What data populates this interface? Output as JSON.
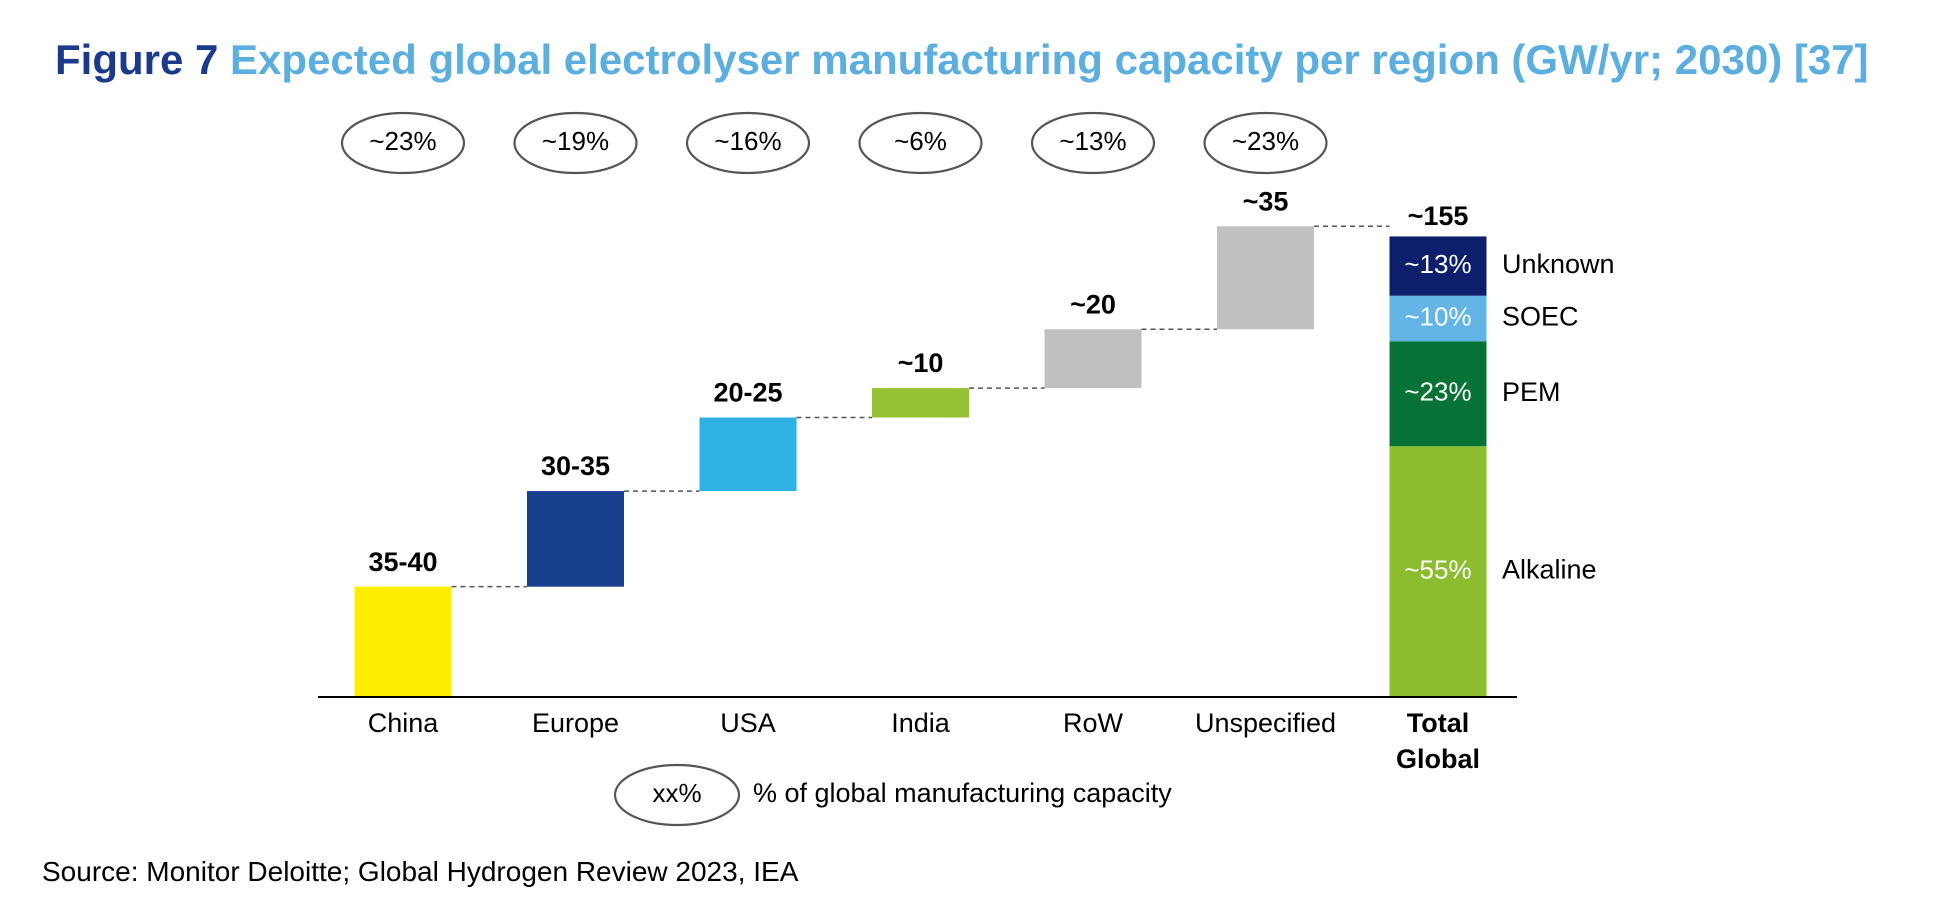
{
  "figure": {
    "number": "Figure 7",
    "title": "Expected global electrolyser manufacturing capacity per region (GW/yr; 2030) [37]",
    "source": "Source: Monitor Deloitte; Global Hydrogen Review 2023, IEA"
  },
  "legend": {
    "symbol": "xx%",
    "text": "% of global manufacturing capacity"
  },
  "chart_data": {
    "type": "bar",
    "subtype": "waterfall",
    "title": "Expected global electrolyser manufacturing capacity per region (GW/yr; 2030)",
    "unit": "GW/yr",
    "ylim": [
      0,
      155
    ],
    "categories": [
      "China",
      "Europe",
      "USA",
      "India",
      "RoW",
      "Unspecified"
    ],
    "bars": [
      {
        "label": "China",
        "value_label": "35-40",
        "value": 37.5,
        "share_label": "~23%",
        "color": "#FFED00"
      },
      {
        "label": "Europe",
        "value_label": "30-35",
        "value": 32.5,
        "share_label": "~19%",
        "color": "#183E8E"
      },
      {
        "label": "USA",
        "value_label": "20-25",
        "value": 25,
        "share_label": "~16%",
        "color": "#2DB2E3"
      },
      {
        "label": "India",
        "value_label": "~10",
        "value": 10,
        "share_label": "~6%",
        "color": "#95C134"
      },
      {
        "label": "RoW",
        "value_label": "~20",
        "value": 20,
        "share_label": "~13%",
        "color": "#C0C0C0"
      },
      {
        "label": "Unspecified",
        "value_label": "~35",
        "value": 35,
        "share_label": "~23%",
        "color": "#C0C0C0"
      }
    ],
    "total": {
      "label_line1": "Total",
      "label_line2": "Global",
      "value_label": "~155",
      "value": 155,
      "segments": [
        {
          "name": "Alkaline",
          "share_label": "~55%",
          "share": 55,
          "color": "#8BBD2E"
        },
        {
          "name": "PEM",
          "share_label": "~23%",
          "share": 23,
          "color": "#077235"
        },
        {
          "name": "SOEC",
          "share_label": "~10%",
          "share": 10,
          "color": "#62B5E5"
        },
        {
          "name": "Unknown",
          "share_label": "~13%",
          "share": 13,
          "color": "#0D1F6B"
        }
      ]
    }
  }
}
